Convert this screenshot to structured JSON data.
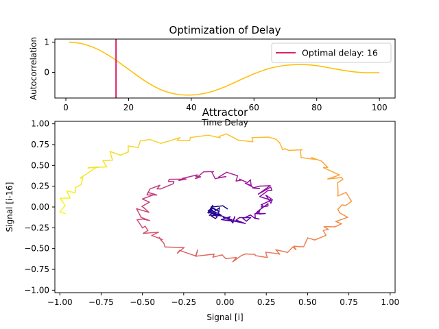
{
  "chart_data": [
    {
      "type": "line",
      "title": "Optimization of Delay",
      "xlabel": "Time Delay",
      "ylabel": "Autocorrelation",
      "xlim": [
        -3.5,
        105
      ],
      "ylim": [
        -0.85,
        1.1
      ],
      "xticks": [
        0,
        20,
        40,
        60,
        80,
        100
      ],
      "yticks": [
        -1,
        0,
        1
      ],
      "x_tick_labels": [
        "0",
        "20",
        "40",
        "60",
        "80",
        "100"
      ],
      "y_tick_labels": [
        "",
        "0",
        "1"
      ],
      "series": [
        {
          "name": "",
          "color": "#ffc00c",
          "x": [
            1,
            5,
            10,
            15,
            20,
            25,
            30,
            35,
            40,
            45,
            50,
            55,
            60,
            65,
            70,
            75,
            80,
            85,
            90,
            95,
            100
          ],
          "y": [
            1.0,
            0.95,
            0.77,
            0.47,
            0.1,
            -0.27,
            -0.56,
            -0.72,
            -0.75,
            -0.68,
            -0.51,
            -0.28,
            -0.05,
            0.13,
            0.23,
            0.26,
            0.22,
            0.13,
            0.04,
            -0.01,
            -0.01
          ]
        }
      ],
      "vline": {
        "x": 16,
        "color": "#dc1f64",
        "label": "Optimal delay: 16"
      },
      "legend": "upper right",
      "grid": false
    },
    {
      "type": "line",
      "title": "Attractor",
      "xlabel": "Signal [i]",
      "ylabel": "Signal [i-16]",
      "xlim": [
        -1.03,
        1.03
      ],
      "ylim": [
        -1.03,
        1.03
      ],
      "xticks": [
        -1.0,
        -0.75,
        -0.5,
        -0.25,
        0.0,
        0.25,
        0.5,
        0.75,
        1.0
      ],
      "yticks": [
        -1.0,
        -0.75,
        -0.5,
        -0.25,
        0.0,
        0.25,
        0.5,
        0.75,
        1.0
      ],
      "x_tick_labels": [
        "−1.00",
        "−0.75",
        "−0.50",
        "−0.25",
        "0.00",
        "0.25",
        "0.50",
        "0.75",
        "1.00"
      ],
      "y_tick_labels": [
        "−1.00",
        "−0.75",
        "−0.50",
        "−0.25",
        "0.00",
        "0.25",
        "0.50",
        "0.75",
        "1.00"
      ],
      "colormap": "plasma",
      "spiral": {
        "turns": 2.0,
        "start_angle_deg": 185,
        "r_outer": 0.97,
        "r_inner": 0.03,
        "points": 240,
        "noise": 0.05
      },
      "grid": false
    }
  ]
}
